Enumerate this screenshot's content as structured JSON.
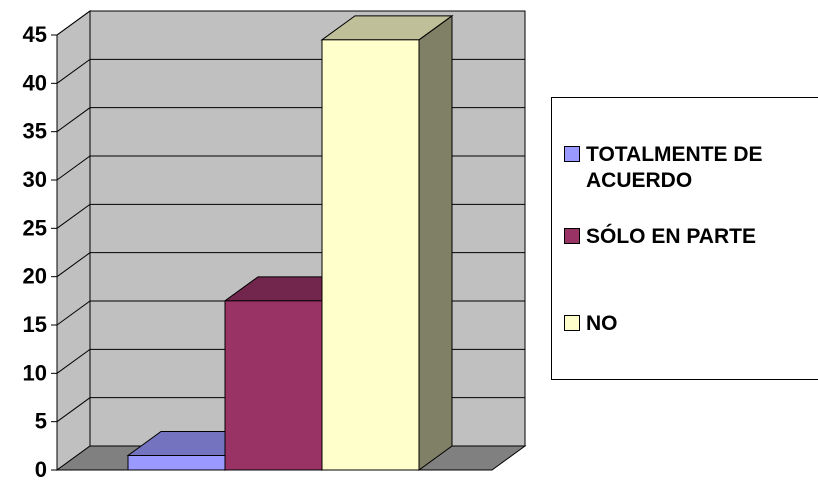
{
  "chart_data": {
    "type": "bar",
    "categories": [
      ""
    ],
    "series": [
      {
        "name": "TOTALMENTE DE ACUERDO",
        "values": [
          1.5
        ],
        "color": "#9999ff"
      },
      {
        "name": "SÓLO EN PARTE",
        "values": [
          17.5
        ],
        "color": "#993366"
      },
      {
        "name": "NO",
        "values": [
          44.5
        ],
        "color": "#ffffcc"
      }
    ],
    "ylim": [
      0,
      45
    ],
    "yticks": [
      "0",
      "5",
      "10",
      "15",
      "20",
      "25",
      "30",
      "35",
      "40",
      "45"
    ],
    "grid": true,
    "legend_position": "right",
    "wall_color": "#c0c0c0",
    "floor_color": "#808080"
  }
}
